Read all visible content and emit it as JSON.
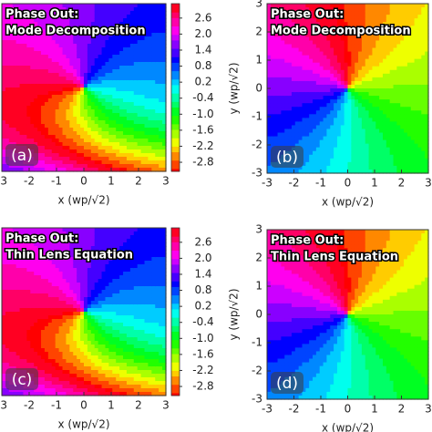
{
  "chart_data": [
    {
      "type": "heatmap",
      "annotation": [
        "Phase Out:",
        "Mode Decomposition"
      ],
      "panel_label": "(a)",
      "x_label": "x (wp/√2)",
      "xlim": [
        -3,
        3
      ],
      "ylim": [
        -3,
        3
      ],
      "xticks": [
        -3,
        -2,
        -1,
        0,
        1,
        2,
        3
      ],
      "colorbar": {
        "lim": [
          -3.14,
          3.14
        ],
        "ticks": [
          2.6,
          {
            "value": 2,
            "label": "2.0"
          },
          1.4,
          0.8,
          0.2,
          -0.4,
          {
            "value": -1,
            "label": "-1.0"
          },
          -1.6,
          -2.2,
          -2.8
        ]
      }
    },
    {
      "type": "heatmap",
      "annotation": [
        "Phase Out:",
        "Mode Decomposition"
      ],
      "panel_label": "(b)",
      "x_label": "x (wp/√2)",
      "y_label": "y (wp/√2)",
      "xlim": [
        -3,
        3
      ],
      "ylim": [
        -3,
        3
      ],
      "xticks": [
        -3,
        -2,
        -1,
        0,
        1,
        2,
        3
      ],
      "yticks": [
        -3,
        -2,
        -1,
        0,
        1,
        2,
        3
      ]
    },
    {
      "type": "heatmap",
      "annotation": [
        "Phase Out:",
        "Thin Lens Equation"
      ],
      "panel_label": "(c)",
      "x_label": "x (wp/√2)",
      "xlim": [
        -3,
        3
      ],
      "ylim": [
        -3,
        3
      ],
      "xticks": [
        -3,
        -2,
        -1,
        0,
        1,
        2,
        3
      ],
      "colorbar": {
        "lim": [
          -3.14,
          3.14
        ],
        "ticks": [
          2.6,
          {
            "value": 2,
            "label": "2.0"
          },
          1.4,
          0.8,
          0.2,
          -0.4,
          {
            "value": -1,
            "label": "-1.0"
          },
          -1.6,
          -2.2,
          -2.8
        ]
      }
    },
    {
      "type": "heatmap",
      "annotation": [
        "Phase Out:",
        "Thin Lens Equation"
      ],
      "panel_label": "(d)",
      "x_label": "x (wp/√2)",
      "y_label": "y (wp/√2)",
      "xlim": [
        -3,
        3
      ],
      "ylim": [
        -3,
        3
      ],
      "xticks": [
        -3,
        -2,
        -1,
        0,
        1,
        2,
        3
      ],
      "yticks": [
        -3,
        -2,
        -1,
        0,
        1,
        2,
        3
      ]
    }
  ]
}
